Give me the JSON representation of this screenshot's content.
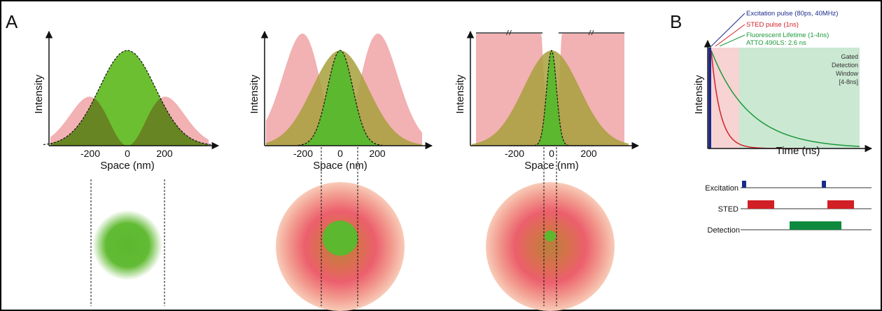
{
  "panel_a": {
    "label": "A",
    "plots": [
      {
        "y_label": "Intensity",
        "x_label": "Space (nm)",
        "x_ticks": [
          "-200",
          "0",
          "200"
        ]
      },
      {
        "y_label": "Intensity",
        "x_label": "Space (nm)",
        "x_ticks": [
          "-200",
          "0",
          "200"
        ]
      },
      {
        "y_label": "Intensity",
        "x_label": "Space (nm)",
        "x_ticks": [
          "-200",
          "0",
          "200"
        ]
      }
    ]
  },
  "panel_b": {
    "label": "B",
    "y_label": "Intensity",
    "x_label": "Time (ns)",
    "legend": [
      "Excitation pulse (80ps, 40MHz)",
      "STED pulse (1ns)",
      "Fluorescent Lifetime (1-4ns)",
      "ATTO 490LS: 2.6 ns"
    ],
    "gate_label": [
      "Gated",
      "Detection",
      "Window",
      "[4-8ns]"
    ],
    "timing_rows": [
      "Excitation",
      "STED",
      "Detection"
    ]
  }
}
